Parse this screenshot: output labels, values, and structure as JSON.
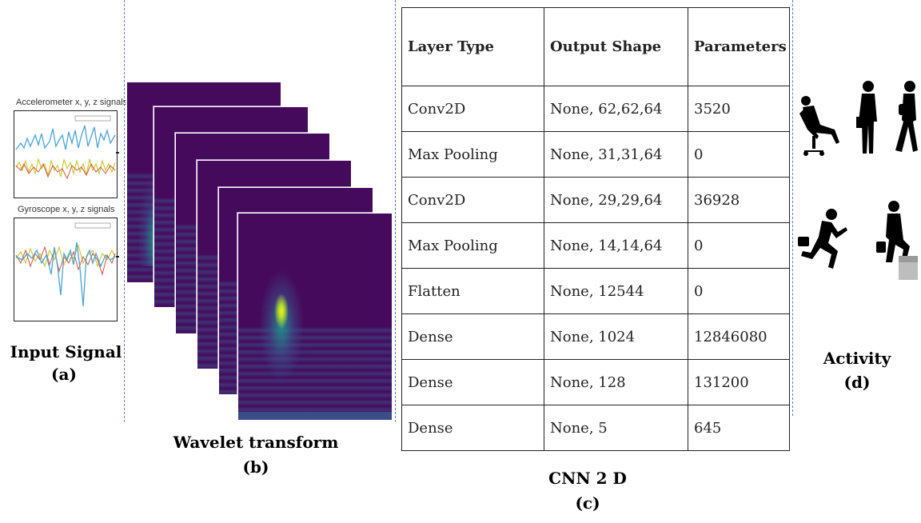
{
  "panel_a": {
    "accel_title": "Accelerometer x, y, z signals",
    "gyro_title": "Gyroscope x, y, z signals",
    "caption": "Input Signal",
    "label": "(a)"
  },
  "panel_b": {
    "caption": "Wavelet transform",
    "label": "(b)",
    "colors": {
      "background": "#450a5c",
      "mid": "#3b528b",
      "teal": "#21918c",
      "peak": "#fde725"
    }
  },
  "panel_c": {
    "caption": "CNN 2 D",
    "label": "(c)",
    "headers": [
      "Layer Type",
      "Output Shape",
      "Parameters"
    ],
    "rows": [
      [
        "Conv2D",
        "None, 62,62,64",
        "3520"
      ],
      [
        "Max Pooling",
        "None, 31,31,64",
        "0"
      ],
      [
        "Conv2D",
        "None, 29,29,64",
        "36928"
      ],
      [
        "Max Pooling",
        "None, 14,14,64",
        "0"
      ],
      [
        "Flatten",
        "None, 12544",
        "0"
      ],
      [
        "Dense",
        "None, 1024",
        "12846080"
      ],
      [
        "Dense",
        "None, 128",
        "131200"
      ],
      [
        "Dense",
        "None, 5",
        "645"
      ]
    ]
  },
  "panel_d": {
    "caption": "Activity",
    "label": "(d)",
    "icons": [
      "sitting-person-icon",
      "standing-person-icon",
      "walking-person-icon",
      "running-person-icon",
      "climbing-stairs-person-icon"
    ]
  }
}
